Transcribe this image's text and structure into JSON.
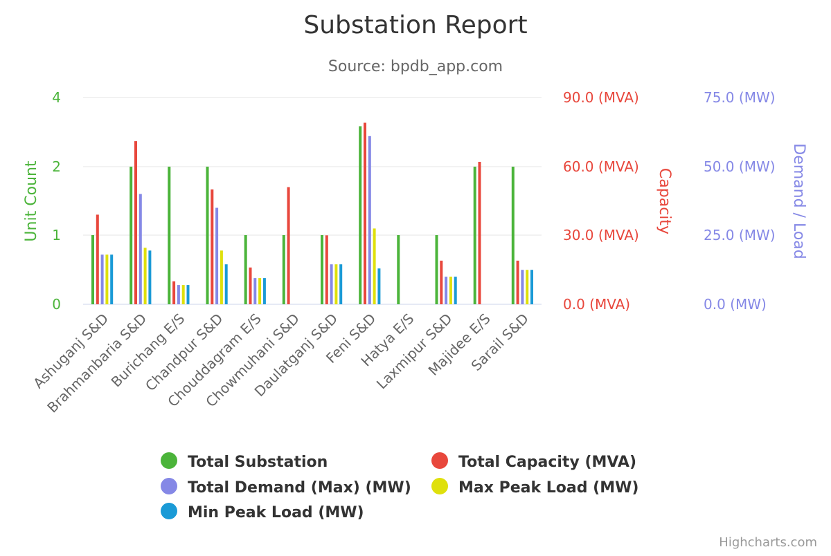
{
  "chart_data": {
    "type": "bar",
    "title": "Substation Report",
    "subtitle": "Source: bpdb_app.com",
    "credits": "Highcharts.com",
    "categories": [
      "Ashuganj S&D",
      "Brahmanbaria S&D",
      "Burichang E/S",
      "Chandpur S&D",
      "Chouddagram E/S",
      "Chowmuhani S&D",
      "Daulatganj S&D",
      "Feni S&D",
      "Hatya E/S",
      "Laxmipur S&D",
      "Majidee E/S",
      "Sarail S&D"
    ],
    "axes": [
      {
        "id": "count",
        "label": "Unit Count",
        "color": "#4bb43a",
        "ticks": [
          "0",
          "1",
          "2",
          "4"
        ],
        "log_scale": true
      },
      {
        "id": "capacity",
        "label": "Capacity",
        "color": "#e8473c",
        "ticks": [
          "0.0 (MVA)",
          "30.0 (MVA)",
          "60.0 (MVA)",
          "90.0 (MVA)"
        ],
        "ylim": [
          0,
          90
        ]
      },
      {
        "id": "mw",
        "label": "Demand / Load",
        "color": "#8588e6",
        "ticks": [
          "0.0 (MW)",
          "25.0 (MW)",
          "50.0 (MW)",
          "75.0 (MW)"
        ],
        "ylim": [
          0,
          75
        ]
      }
    ],
    "grid": true,
    "legend_position": "bottom",
    "series": [
      {
        "name": "Total Substation",
        "axis": "count",
        "color": "#4bb43a",
        "values": [
          1,
          2,
          2,
          2,
          1,
          1,
          1,
          3,
          1,
          1,
          2,
          2
        ]
      },
      {
        "name": "Total Capacity (MVA)",
        "axis": "capacity",
        "color": "#e8473c",
        "values": [
          39,
          71,
          10,
          50,
          16,
          51,
          30,
          79,
          0,
          19,
          62,
          19
        ]
      },
      {
        "name": "Total Demand (Max) (MW)",
        "axis": "mw",
        "color": "#8588e6",
        "values": [
          18,
          40,
          7,
          35,
          9.5,
          0,
          14.5,
          61,
          0,
          10,
          0,
          12.5
        ]
      },
      {
        "name": "Max Peak Load (MW)",
        "axis": "mw",
        "color": "#dfe00c",
        "values": [
          18,
          20.5,
          7,
          19.5,
          9.5,
          0,
          14.5,
          27.5,
          0,
          10,
          0,
          12.5
        ]
      },
      {
        "name": "Min Peak Load (MW)",
        "axis": "mw",
        "color": "#1a9ad6",
        "values": [
          18,
          19.5,
          7,
          14.5,
          9.5,
          0,
          14.5,
          13,
          0,
          10,
          0,
          12.5
        ]
      }
    ]
  }
}
